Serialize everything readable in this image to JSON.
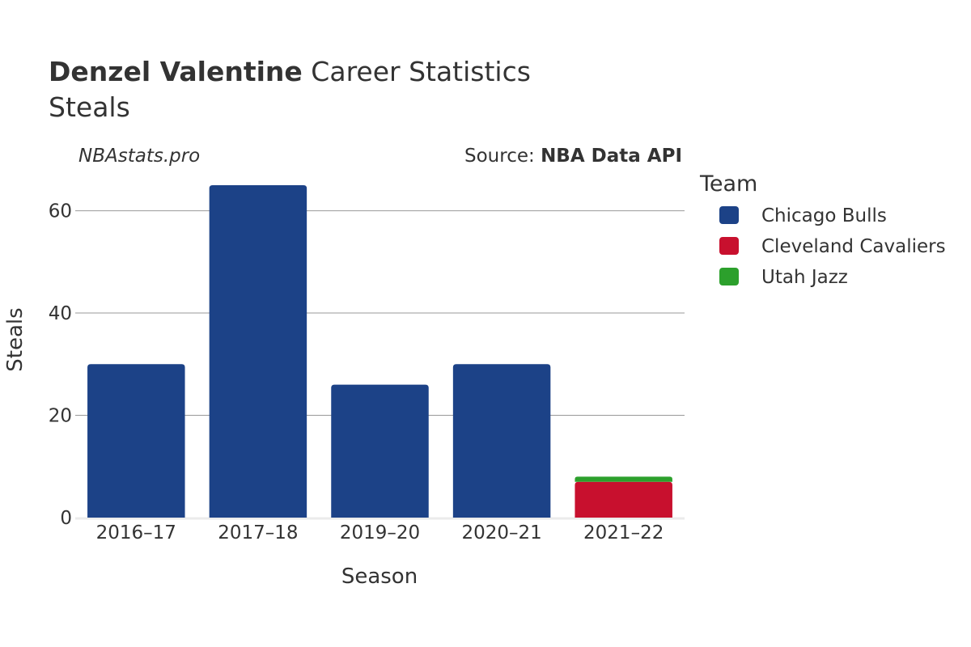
{
  "title": {
    "player": "Denzel Valentine",
    "rest": " Career Statistics",
    "subtitle": "Steals"
  },
  "watermark": "NBAstats.pro",
  "source": {
    "prefix": "Source: ",
    "name": "NBA Data API"
  },
  "legend": {
    "title": "Team",
    "placement": "right",
    "items": [
      {
        "name": "Chicago Bulls",
        "color": "#1c4287"
      },
      {
        "name": "Cleveland Cavaliers",
        "color": "#c8102e"
      },
      {
        "name": "Utah Jazz",
        "color": "#2ca02c"
      }
    ]
  },
  "chart_data": {
    "type": "bar",
    "stacked": true,
    "xlabel": "Season",
    "ylabel": "Steals",
    "ylim": [
      0,
      68
    ],
    "yticks": [
      0,
      20,
      40,
      60
    ],
    "grid": true,
    "categories": [
      "2016–17",
      "2017–18",
      "2019–20",
      "2020–21",
      "2021–22"
    ],
    "series": [
      {
        "name": "Chicago Bulls",
        "color": "#1c4287",
        "values": [
          30,
          65,
          26,
          30,
          0
        ]
      },
      {
        "name": "Cleveland Cavaliers",
        "color": "#c8102e",
        "values": [
          0,
          0,
          0,
          0,
          7
        ]
      },
      {
        "name": "Utah Jazz",
        "color": "#2ca02c",
        "values": [
          0,
          0,
          0,
          0,
          1
        ]
      }
    ]
  }
}
